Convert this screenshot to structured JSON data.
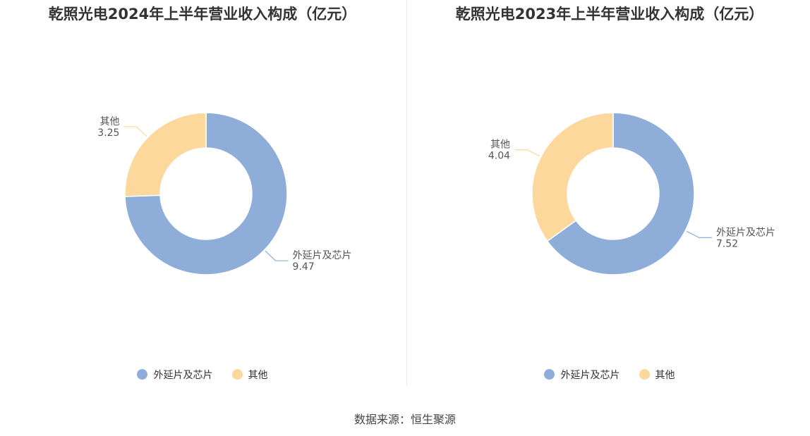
{
  "colors": {
    "chip": "#8eadd9",
    "other": "#fdd89c"
  },
  "source": "数据来源：恒生聚源",
  "chart_data": [
    {
      "type": "pie",
      "title": "乾照光电2024年上半年营业收入构成（亿元）",
      "slices": [
        {
          "name": "外延片及芯片",
          "value": 9.47,
          "value_label": "9.47",
          "color": "#8eadd9"
        },
        {
          "name": "其他",
          "value": 3.25,
          "value_label": "3.25",
          "color": "#fdd89c"
        }
      ],
      "legend": [
        "外延片及芯片",
        "其他"
      ],
      "legend_position": "bottom"
    },
    {
      "type": "pie",
      "title": "乾照光电2023年上半年营业收入构成（亿元）",
      "slices": [
        {
          "name": "外延片及芯片",
          "value": 7.52,
          "value_label": "7.52",
          "color": "#8eadd9"
        },
        {
          "name": "其他",
          "value": 4.04,
          "value_label": "4.04",
          "color": "#fdd89c"
        }
      ],
      "legend": [
        "外延片及芯片",
        "其他"
      ],
      "legend_position": "bottom"
    }
  ]
}
